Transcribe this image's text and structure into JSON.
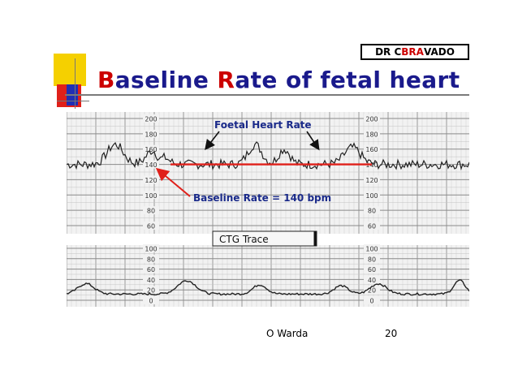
{
  "author_box": {
    "prefix": "DR C ",
    "highlight": "BRA",
    "suffix": "VADO"
  },
  "title": {
    "letter1": "B",
    "part1": "aseline ",
    "letter2": "R",
    "part2": "ate of fetal heart"
  },
  "ctg": {
    "title": "Foetal Heart Rate",
    "baseline_label": "Baseline Rate = 140 bpm",
    "trace_label": "CTG Trace",
    "fhr_scale": [
      "200",
      "180",
      "160",
      "140",
      "120",
      "100",
      "80",
      "60"
    ],
    "uc_scale": [
      "100",
      "80",
      "60",
      "40",
      "20",
      "0"
    ],
    "baseline_bpm": 140
  },
  "footer": {
    "author": "O Warda",
    "page": "20"
  },
  "colors": {
    "title_blue": "#1a1a8c",
    "accent_red": "#cc0000",
    "deco_yellow": "#f5d000",
    "deco_red": "#e0201a",
    "deco_blue": "#1f2fb4"
  }
}
